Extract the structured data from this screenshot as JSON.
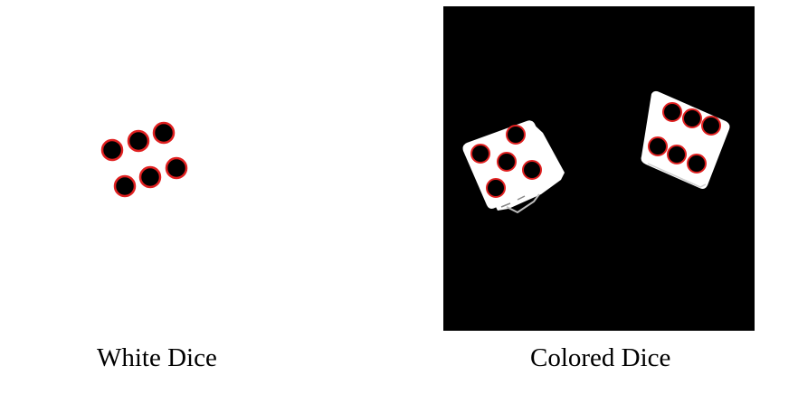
{
  "figure": {
    "left_panel": {
      "caption": "White Dice",
      "background_color": "#ffffff",
      "pip_fill_color": "#000000",
      "pip_outline_color": "#e02020",
      "detected_pip_count": 6
    },
    "right_panel": {
      "caption": "Colored Dice",
      "background_color": "#000000",
      "die_color": "#ffffff",
      "pip_fill_color": "#000000",
      "pip_outline_color": "#e02020",
      "dice": [
        {
          "face_value": 5
        },
        {
          "face_value": 6
        }
      ]
    }
  }
}
